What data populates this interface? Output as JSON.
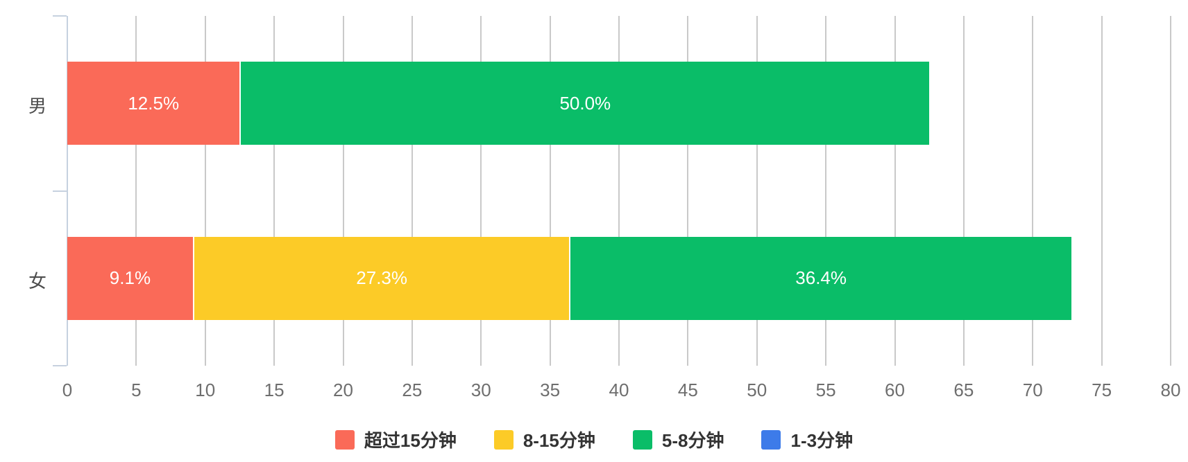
{
  "chart_data": {
    "type": "bar",
    "orientation": "horizontal",
    "stacked": true,
    "title": "",
    "xlabel": "",
    "ylabel": "",
    "categories": [
      "男",
      "女"
    ],
    "series": [
      {
        "name": "超过15分钟",
        "color": "#fa6a58",
        "values": [
          12.5,
          9.1
        ]
      },
      {
        "name": "8-15分钟",
        "color": "#fccb27",
        "values": [
          0,
          27.3
        ]
      },
      {
        "name": "5-8分钟",
        "color": "#0abd68",
        "values": [
          50.0,
          36.4
        ]
      },
      {
        "name": "1-3分钟",
        "color": "#3d7be9",
        "values": [
          0,
          0
        ]
      }
    ],
    "bar_labels": [
      [
        "12.5%",
        "",
        "50.0%",
        ""
      ],
      [
        "9.1%",
        "27.3%",
        "36.4%",
        ""
      ]
    ],
    "xlim": [
      0,
      80
    ],
    "x_tick_step": 5,
    "x_tick_labels": [
      "0",
      "5",
      "10",
      "15",
      "20",
      "25",
      "30",
      "35",
      "40",
      "45",
      "50",
      "55",
      "60",
      "65",
      "70",
      "75",
      "80"
    ],
    "grid": true,
    "legend_position": "bottom",
    "colors": {
      "gridline": "#c9c9c9",
      "axis_line": "#c6d1df",
      "tick_text": "#6e6e6e",
      "category_text": "#4d4d4d",
      "legend_text": "#333333",
      "bar_label_text": "#ffffff",
      "background": "#ffffff"
    }
  }
}
